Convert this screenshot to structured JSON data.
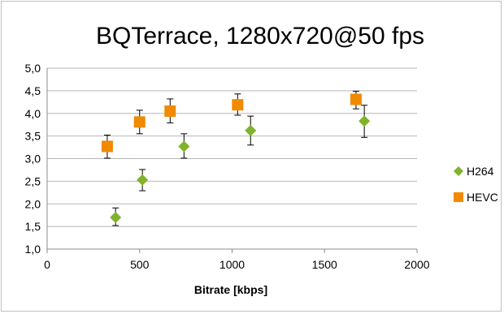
{
  "chart_data": {
    "type": "scatter",
    "title": "BQTerrace, 1280x720@50 fps",
    "xlabel": "Bitrate [kbps]",
    "ylabel": "",
    "xlim": [
      0,
      2000
    ],
    "ylim": [
      1.0,
      5.0
    ],
    "x_ticks": [
      "0",
      "500",
      "1000",
      "1500",
      "2000"
    ],
    "y_ticks": [
      "1,0",
      "1,5",
      "2,0",
      "2,5",
      "3,0",
      "3,5",
      "4,0",
      "4,5",
      "5,0"
    ],
    "grid": "horizontal",
    "legend_position": "right",
    "series": [
      {
        "name": "H264",
        "marker": "diamond",
        "color": "#7fb32a",
        "points": [
          {
            "x": 370,
            "y": 1.7,
            "err_low": 1.52,
            "err_high": 1.91
          },
          {
            "x": 515,
            "y": 2.53,
            "err_low": 2.29,
            "err_high": 2.76
          },
          {
            "x": 740,
            "y": 3.27,
            "err_low": 3.01,
            "err_high": 3.55
          },
          {
            "x": 1100,
            "y": 3.62,
            "err_low": 3.3,
            "err_high": 3.94
          },
          {
            "x": 1715,
            "y": 3.83,
            "err_low": 3.47,
            "err_high": 4.18
          }
        ]
      },
      {
        "name": "HEVC",
        "marker": "square",
        "color": "#f08a00",
        "points": [
          {
            "x": 325,
            "y": 3.27,
            "err_low": 3.01,
            "err_high": 3.52
          },
          {
            "x": 500,
            "y": 3.81,
            "err_low": 3.55,
            "err_high": 4.07
          },
          {
            "x": 665,
            "y": 4.05,
            "err_low": 3.79,
            "err_high": 4.32
          },
          {
            "x": 1030,
            "y": 4.19,
            "err_low": 3.96,
            "err_high": 4.43
          },
          {
            "x": 1670,
            "y": 4.31,
            "err_low": 4.1,
            "err_high": 4.49
          }
        ]
      }
    ]
  }
}
